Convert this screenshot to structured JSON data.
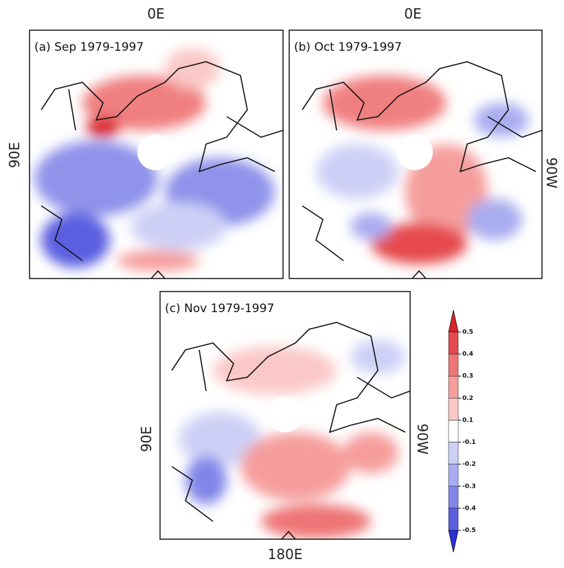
{
  "panels": [
    {
      "title": "(a) Sep 1979-1997",
      "top_label": "0E",
      "left_label": "90E"
    },
    {
      "title": "(b) Oct 1979-1997",
      "top_label": "0E",
      "right_label": "90W"
    },
    {
      "title": "(c) Nov 1979-1997",
      "left_label": "90E",
      "right_label": "90W",
      "bottom_label": "180E"
    }
  ],
  "colorbar": {
    "ticks": [
      0.5,
      0.4,
      0.3,
      0.2,
      0.1,
      -0.1,
      -0.2,
      -0.3,
      -0.4,
      -0.5
    ],
    "colors": [
      "#d8262b",
      "#e54a4e",
      "#ef7576",
      "#f59d9c",
      "#fac8c7",
      "#ffffff",
      "#cdd0f6",
      "#a9acf0",
      "#8085e8",
      "#5a5fe0",
      "#2b31d8"
    ]
  }
}
